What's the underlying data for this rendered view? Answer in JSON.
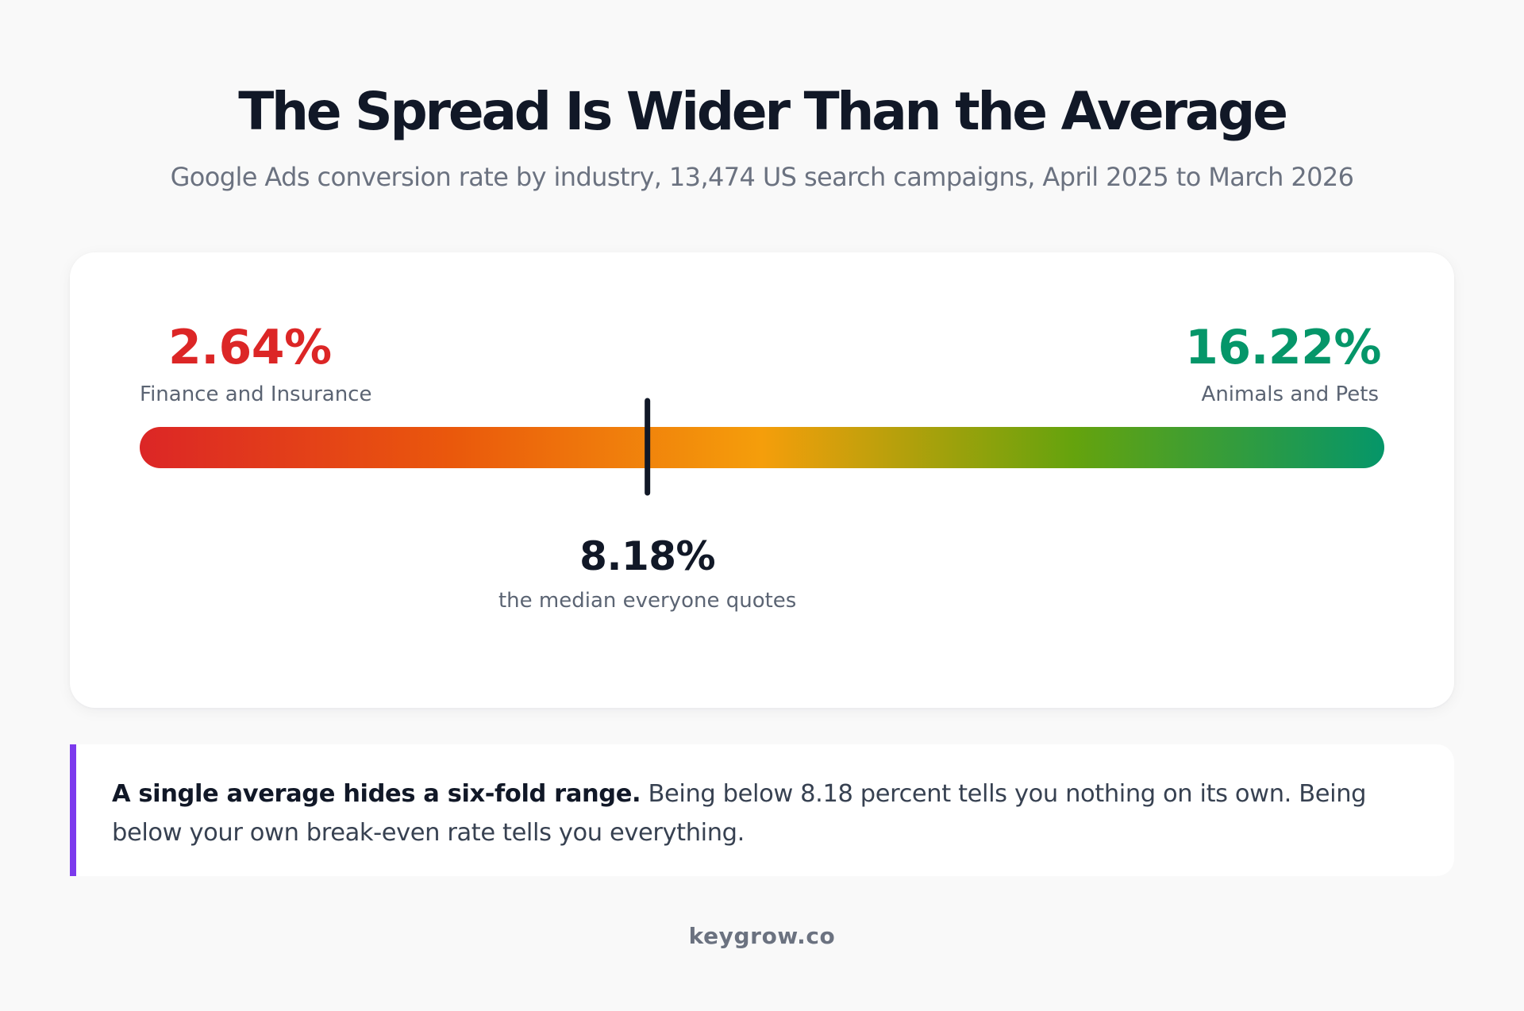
{
  "header": {
    "title": "The Spread Is Wider Than the Average",
    "subtitle": "Google Ads conversion rate by industry, 13,474 US search campaigns, April 2025 to March 2026"
  },
  "chart_data": {
    "type": "range-scale",
    "unit": "%",
    "min": {
      "value": 2.64,
      "display": "2.64%",
      "label": "Finance and Insurance",
      "color": "#dc2626"
    },
    "max": {
      "value": 16.22,
      "display": "16.22%",
      "label": "Animals and Pets",
      "color": "#059669"
    },
    "median": {
      "value": 8.18,
      "display": "8.18%",
      "label": "the median everyone quotes",
      "color": "#111827"
    },
    "gradient_colors": [
      "#dc2626",
      "#ea580c",
      "#f59e0b",
      "#65a30d",
      "#059669"
    ]
  },
  "note": {
    "accent_color": "#7c3aed",
    "strong": "A single average hides a six-fold range.",
    "text": "Being below 8.18 percent tells you nothing on its own. Being below your own break-even rate tells you everything."
  },
  "footer": {
    "brand": "keygrow.co"
  }
}
